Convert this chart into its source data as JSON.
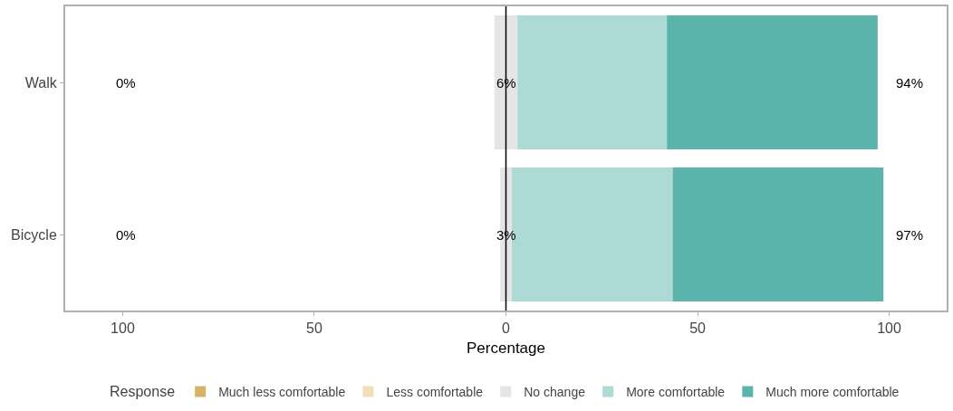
{
  "chart_data": {
    "type": "bar",
    "orientation": "horizontal",
    "xlabel": "Percentage",
    "legend_title": "Response",
    "legend": "bottom",
    "categories": [
      "Walk",
      "Bicycle"
    ],
    "series": [
      {
        "name": "Much less comfortable",
        "color": "#d8b365",
        "values": [
          0,
          0
        ]
      },
      {
        "name": "Less comfortable",
        "color": "#f0e0b8",
        "values": [
          0,
          0
        ]
      },
      {
        "name": "No change",
        "color": "#e5e5e5",
        "values": [
          6,
          3
        ],
        "base": [
          -3,
          -1.5
        ]
      },
      {
        "name": "More comfortable",
        "color": "#aedad6",
        "values": [
          39,
          42
        ],
        "base": [
          3,
          1.5
        ]
      },
      {
        "name": "Much more comfortable",
        "color": "#5ab4ac",
        "values": [
          55,
          55
        ],
        "base": [
          42,
          43.5
        ]
      }
    ],
    "xlim": [
      -115,
      115
    ],
    "xticks": [
      {
        "value": -100,
        "label": "100"
      },
      {
        "value": -50,
        "label": "50"
      },
      0,
      50,
      100
    ],
    "ref_lines": [
      {
        "axis": "x",
        "value": 0,
        "color": "#000000"
      }
    ],
    "annotations": [
      "0%",
      "6%",
      "94%",
      "0%",
      "3%",
      "97%"
    ]
  }
}
